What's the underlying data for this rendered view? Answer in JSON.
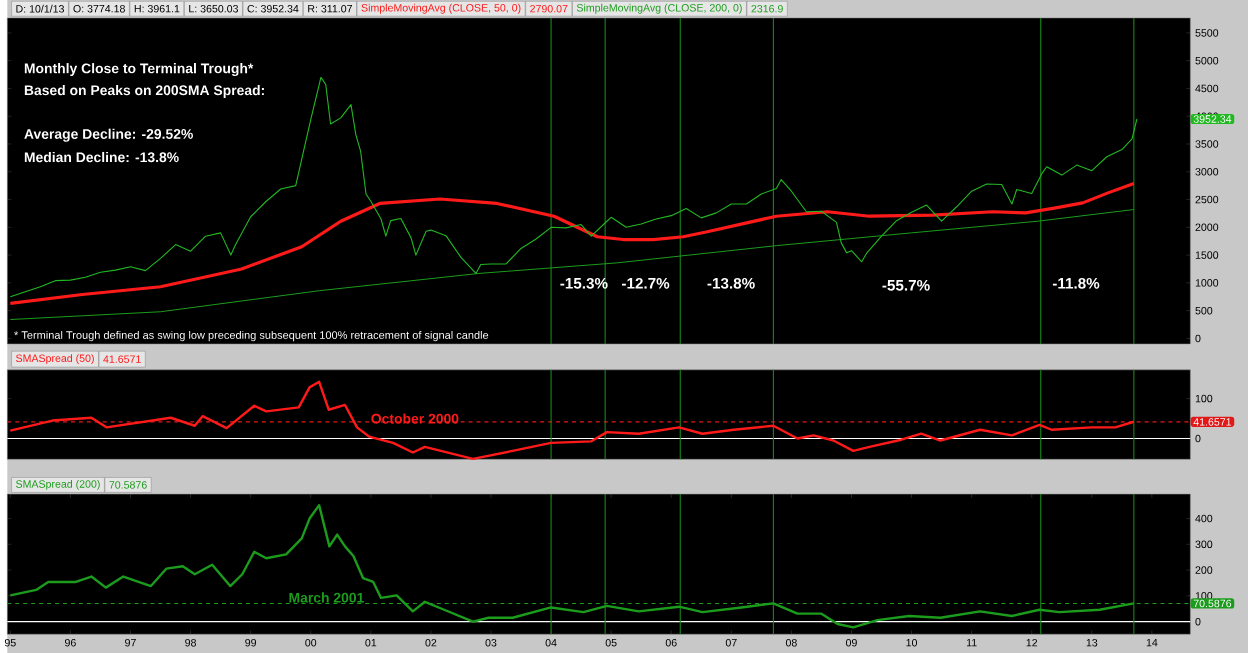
{
  "chart_data": [
    {
      "type": "line",
      "title": "Monthly Close to Terminal Trough*",
      "subtitle": "Based on Peaks on 200SMA Spread:",
      "xlim": [
        1994.95,
        2014.64
      ],
      "ylim": [
        -100,
        5770
      ],
      "yticks": [
        0,
        500,
        1000,
        1500,
        2000,
        2500,
        3000,
        3500,
        4000,
        4500,
        5000,
        5500
      ],
      "tick_labels": "y",
      "legend": "top",
      "series": [
        {
          "color": "#22b822",
          "x": [
            1995.0,
            1995.25,
            1995.5,
            1995.75,
            1996.0,
            1996.25,
            1996.5,
            1996.75,
            1997.0,
            1997.25,
            1997.5,
            1997.75,
            1998.0,
            1998.25,
            1998.5,
            1998.67,
            1998.75,
            1999.0,
            1999.25,
            1999.5,
            1999.75,
            2000.0,
            2000.17,
            2000.25,
            2000.33,
            2000.5,
            2000.67,
            2000.75,
            2000.83,
            2000.92,
            2001.0,
            2001.17,
            2001.25,
            2001.33,
            2001.5,
            2001.67,
            2001.75,
            2001.92,
            2002.0,
            2002.25,
            2002.5,
            2002.75,
            2002.83,
            2003.0,
            2003.25,
            2003.5,
            2003.75,
            2004.0,
            2004.25,
            2004.5,
            2004.67,
            2004.92,
            2005.0,
            2005.25,
            2005.5,
            2005.75,
            2006.0,
            2006.25,
            2006.5,
            2006.75,
            2007.0,
            2007.25,
            2007.5,
            2007.75,
            2007.83,
            2008.0,
            2008.25,
            2008.5,
            2008.75,
            2008.83,
            2008.92,
            2009.0,
            2009.17,
            2009.25,
            2009.5,
            2009.75,
            2010.0,
            2010.25,
            2010.5,
            2010.75,
            2011.0,
            2011.25,
            2011.5,
            2011.67,
            2011.75,
            2012.0,
            2012.17,
            2012.25,
            2012.5,
            2012.75,
            2013.0,
            2013.25,
            2013.5,
            2013.67,
            2013.75
          ],
          "values": [
            750,
            840,
            930,
            1040,
            1050,
            1100,
            1190,
            1230,
            1290,
            1220,
            1440,
            1690,
            1570,
            1840,
            1900,
            1500,
            1690,
            2190,
            2460,
            2690,
            2750,
            3940,
            4700,
            4570,
            3860,
            3970,
            4210,
            3670,
            3370,
            2600,
            2470,
            2150,
            1840,
            2120,
            2160,
            1810,
            1500,
            1930,
            1950,
            1850,
            1460,
            1170,
            1330,
            1340,
            1340,
            1620,
            1790,
            2000,
            1990,
            2050,
            1840,
            2100,
            2180,
            2000,
            2060,
            2150,
            2210,
            2340,
            2170,
            2260,
            2420,
            2420,
            2600,
            2700,
            2860,
            2650,
            2280,
            2290,
            2090,
            1720,
            1540,
            1580,
            1380,
            1530,
            1840,
            2120,
            2270,
            2400,
            2110,
            2370,
            2650,
            2780,
            2770,
            2420,
            2680,
            2610,
            2970,
            3090,
            2940,
            3120,
            3020,
            3270,
            3400,
            3590,
            3950
          ]
        },
        {
          "name": "SimpleMovingAvg (CLOSE, 50, 0)",
          "color": "#ff1a1a",
          "x": [
            1995.0,
            1996.2,
            1997.5,
            1998.85,
            1999.85,
            2000.5,
            2001.15,
            2002.15,
            2003.1,
            2004.05,
            2004.77,
            2005.2,
            2005.7,
            2006.2,
            2006.6,
            2007.75,
            2008.6,
            2009.3,
            2010.35,
            2011.35,
            2011.9,
            2012.4,
            2012.85,
            2013.27,
            2013.7
          ],
          "values": [
            630,
            790,
            930,
            1250,
            1650,
            2110,
            2430,
            2510,
            2430,
            2200,
            1830,
            1780,
            1780,
            1830,
            1920,
            2200,
            2280,
            2200,
            2220,
            2280,
            2260,
            2350,
            2440,
            2620,
            2790
          ]
        },
        {
          "name": "SimpleMovingAvg (CLOSE, 200, 0)",
          "color": "#1c9c1c",
          "x": [
            1995.0,
            1997.5,
            2000.15,
            2002.8,
            2005.1,
            2007.75,
            2010.0,
            2012.1,
            2013.7
          ],
          "values": [
            340,
            480,
            860,
            1170,
            1360,
            1670,
            1900,
            2110,
            2320
          ]
        }
      ],
      "ref_lines": [
        {
          "axis": "x",
          "value": 2004.0,
          "color": "#1a8c1a"
        },
        {
          "axis": "x",
          "value": 2004.9,
          "color": "#1a8c1a"
        },
        {
          "axis": "x",
          "value": 2006.15,
          "color": "#1a8c1a"
        },
        {
          "axis": "x",
          "value": 2007.7,
          "color": "#1a8c1a"
        },
        {
          "axis": "x",
          "value": 2012.15,
          "color": "#1a8c1a"
        },
        {
          "axis": "x",
          "value": 2013.7,
          "color": "#1a8c1a"
        }
      ],
      "annotations": [
        "D: 10/1/13",
        "O: 3774.18",
        "H: 3961.1",
        "L: 3650.03",
        "C: 3952.34",
        "R: 311.07",
        "2790.07",
        "2316.9",
        "Average Decline: -29.52%",
        "Median Decline: -13.8%",
        "* Terminal Trough defined as swing low preceding subsequent 100% retracement of signal candle",
        "3952.34",
        "-15.3%",
        "-12.7%",
        "-13.8%",
        "-55.7%",
        "-11.8%"
      ]
    },
    {
      "type": "line",
      "xlim": [
        1994.95,
        2014.64
      ],
      "ylim": [
        -52,
        172
      ],
      "yticks": [
        0,
        100
      ],
      "tick_labels": "y",
      "legend": "top left",
      "series": [
        {
          "name": "SMASpread (50)",
          "color": "#ff1a1a",
          "x": [
            1995.0,
            1995.7,
            1996.35,
            1996.6,
            1997.67,
            1998.07,
            1998.2,
            1998.6,
            1999.06,
            1999.26,
            1999.8,
            1999.98,
            2000.14,
            2000.3,
            2000.57,
            2000.77,
            2000.97,
            2001.37,
            2001.7,
            2001.9,
            2002.7,
            2003.36,
            2004.0,
            2004.67,
            2004.93,
            2005.46,
            2006.13,
            2006.52,
            2007.04,
            2007.7,
            2008.1,
            2008.37,
            2008.7,
            2009.03,
            2009.3,
            2009.83,
            2010.16,
            2010.48,
            2011.14,
            2011.67,
            2012.13,
            2012.33,
            2013.0,
            2013.39,
            2013.7
          ],
          "values": [
            20,
            45,
            52,
            28,
            52,
            32,
            56,
            26,
            82,
            68,
            78,
            128,
            142,
            72,
            84,
            28,
            5,
            -11,
            -35,
            -21,
            -51,
            -31,
            -11,
            -7,
            16,
            12,
            28,
            12,
            22,
            32,
            0,
            8,
            -5,
            -31,
            -21,
            -3,
            12,
            -5,
            22,
            8,
            34,
            22,
            28,
            28,
            42
          ]
        }
      ],
      "ref_lines": [
        {
          "axis": "y",
          "value": 0,
          "color": "#ffffff"
        },
        {
          "axis": "y",
          "value": 41.6571,
          "label": "41.6571",
          "color": "#e01818",
          "line_style": "dashed"
        },
        {
          "axis": "x",
          "value": 2004.0,
          "color": "#1a8c1a"
        },
        {
          "axis": "x",
          "value": 2004.9,
          "color": "#1a8c1a"
        },
        {
          "axis": "x",
          "value": 2006.15,
          "color": "#1a8c1a"
        },
        {
          "axis": "x",
          "value": 2007.7,
          "color": "#1a8c1a"
        },
        {
          "axis": "x",
          "value": 2012.15,
          "color": "#1a8c1a"
        },
        {
          "axis": "x",
          "value": 2013.7,
          "color": "#1a8c1a"
        }
      ],
      "annotations": [
        "41.6571",
        "October 2000"
      ]
    },
    {
      "type": "line",
      "xlim": [
        1994.95,
        2014.64
      ],
      "ylim": [
        -49,
        495
      ],
      "yticks": [
        0,
        100,
        200,
        300,
        400
      ],
      "legend": "top left",
      "xticks": [
        {
          "value": 1995,
          "label": "95"
        },
        {
          "value": 1996,
          "label": "96"
        },
        {
          "value": 1997,
          "label": "97"
        },
        {
          "value": 1998,
          "label": "98"
        },
        {
          "value": 1999,
          "label": "99"
        },
        {
          "value": 2000,
          "label": "00"
        },
        {
          "value": 2001,
          "label": "01"
        },
        {
          "value": 2002,
          "label": "02"
        },
        {
          "value": 2003,
          "label": "03"
        },
        {
          "value": 2004,
          "label": "04"
        },
        {
          "value": 2005,
          "label": "05"
        },
        {
          "value": 2006,
          "label": "06"
        },
        {
          "value": 2007,
          "label": "07"
        },
        {
          "value": 2008,
          "label": "08"
        },
        {
          "value": 2009,
          "label": "09"
        },
        {
          "value": 2010,
          "label": "10"
        },
        {
          "value": 2011,
          "label": "11"
        },
        {
          "value": 2012,
          "label": "12"
        },
        {
          "value": 2013,
          "label": "13"
        },
        {
          "value": 2014,
          "label": "14"
        }
      ],
      "series": [
        {
          "name": "SMASpread (200)",
          "color": "#1c9c1c",
          "x": [
            1995.0,
            1995.43,
            1995.63,
            1996.09,
            1996.35,
            1996.59,
            1996.88,
            1997.34,
            1997.6,
            1997.87,
            1998.07,
            1998.36,
            1998.66,
            1998.86,
            1999.06,
            1999.26,
            1999.59,
            1999.85,
            1999.98,
            2000.14,
            2000.31,
            2000.44,
            2000.57,
            2000.71,
            2000.87,
            2001.04,
            2001.17,
            2001.43,
            2001.7,
            2001.9,
            2002.16,
            2002.7,
            2002.96,
            2003.36,
            2004.0,
            2004.54,
            2004.93,
            2005.46,
            2006.13,
            2006.52,
            2007.17,
            2007.7,
            2008.1,
            2008.5,
            2008.77,
            2009.03,
            2009.43,
            2009.96,
            2010.48,
            2011.14,
            2011.67,
            2012.13,
            2012.46,
            2013.13,
            2013.7
          ],
          "values": [
            102,
            123,
            154,
            154,
            175,
            132,
            175,
            138,
            206,
            215,
            184,
            221,
            138,
            184,
            271,
            246,
            261,
            323,
            400,
            452,
            292,
            338,
            292,
            255,
            169,
            154,
            92,
            102,
            40,
            77,
            52,
            0,
            15,
            15,
            55,
            37,
            61,
            40,
            58,
            37,
            55,
            71,
            31,
            31,
            -9,
            -22,
            6,
            22,
            15,
            40,
            22,
            46,
            37,
            46,
            71
          ]
        }
      ],
      "ref_lines": [
        {
          "axis": "y",
          "value": 0,
          "color": "#ffffff"
        },
        {
          "axis": "y",
          "value": 70.5876,
          "label": "70.5876",
          "color": "#1c9c1c",
          "line_style": "dashed"
        },
        {
          "axis": "x",
          "value": 2004.0,
          "color": "#1a8c1a"
        },
        {
          "axis": "x",
          "value": 2004.9,
          "color": "#1a8c1a"
        },
        {
          "axis": "x",
          "value": 2006.15,
          "color": "#1a8c1a"
        },
        {
          "axis": "x",
          "value": 2007.7,
          "color": "#1a8c1a"
        },
        {
          "axis": "x",
          "value": 2012.15,
          "color": "#1a8c1a"
        },
        {
          "axis": "x",
          "value": 2013.7,
          "color": "#1a8c1a"
        }
      ],
      "annotations": [
        "70.5876",
        "March 2001"
      ]
    }
  ]
}
